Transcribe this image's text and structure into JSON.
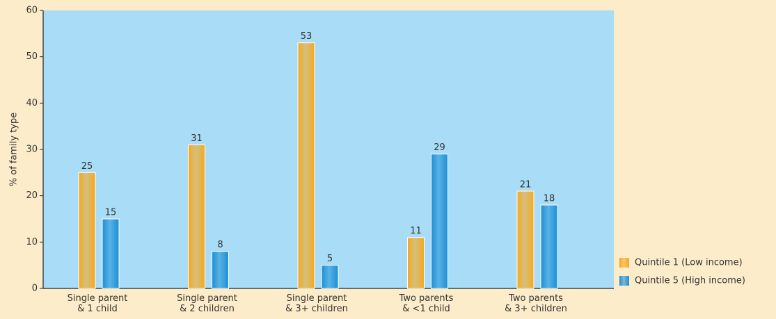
{
  "chart_data": {
    "type": "bar",
    "categories": [
      "Single parent\n& 1 child",
      "Single parent\n& 2 children",
      "Single parent\n& 3+ children",
      "Two parents\n& <1 child",
      "Two parents\n& 3+ children"
    ],
    "series": [
      {
        "name": "Quintile 1 (Low income)",
        "color": "#f7a81c",
        "values": [
          25,
          31,
          53,
          11,
          21
        ]
      },
      {
        "name": "Quintile 5 (High income)",
        "color": "#1a8fd6",
        "values": [
          15,
          8,
          5,
          29,
          18
        ]
      }
    ],
    "y_label": "% of family type",
    "ylim": [
      0,
      60
    ],
    "yticks": [
      0,
      10,
      20,
      30,
      40,
      50,
      60
    ],
    "grid": false,
    "legend": "lower right"
  }
}
